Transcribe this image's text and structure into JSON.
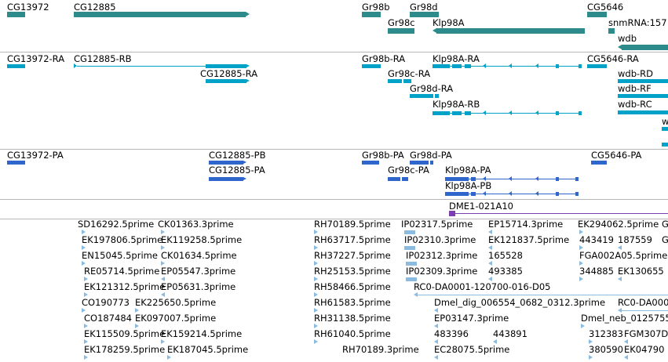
{
  "colors": {
    "gene": "#2e8b8b",
    "transcript": "#00a3c7",
    "protein": "#2e66cc",
    "clone": "#7a3fb0",
    "est": "#8cbbe0",
    "divider": "#b7b7b7"
  },
  "genes_track": {
    "labels": [
      "CG13972",
      "CG12885",
      "Gr98b",
      "Gr98d",
      "CG5646",
      "Gr98c",
      "Klp98A",
      "snmRNA:157",
      "wdb"
    ]
  },
  "transcripts_track": {
    "labels": [
      "CG13972-RA",
      "CG12885-RB",
      "Gr98b-RA",
      "Klp98A-RA",
      "CG5646-RA",
      "CG12885-RA",
      "Gr98c-RA",
      "wdb-RD",
      "Gr98d-RA",
      "wdb-RF",
      "Klp98A-RB",
      "wdb-RC",
      "w"
    ]
  },
  "proteins_track": {
    "labels": [
      "CG13972-PA",
      "CG12885-PB",
      "Gr98b-PA",
      "Gr98d-PA",
      "CG5646-PA",
      "CG12885-PA",
      "Gr98c-PA",
      "Klp98A-PA",
      "Klp98A-PB"
    ]
  },
  "clones_track": {
    "labels": [
      "DME1-021A10"
    ]
  },
  "est_track": {
    "labels": [
      "SD16292.5prime",
      "CK01363.3prime",
      "RH70189.5prime",
      "IP02317.5prime",
      "EP15714.3prime",
      "EK294062.5prime",
      "G",
      "EK197806.5prime",
      "EK119258.5prime",
      "RH63717.5prime",
      "IP02310.3prime",
      "EK121837.5prime",
      "443419",
      "187559",
      "G",
      "EN15045.5prime",
      "CK01634.5prime",
      "RH37227.5prime",
      "IP02312.3prime",
      "165528",
      "FGA002A05.5prime",
      "RE05714.5prime",
      "EP05547.3prime",
      "RH25153.5prime",
      "IP02309.3prime",
      "493385",
      "344885",
      "EK130655",
      "EK121312.5prime",
      "EP05631.3prime",
      "RH58466.5prime",
      "RC0-DA0001-120700-016-D05",
      "CO190773",
      "EK225650.5prime",
      "RH61583.5prime",
      "Dmel_dig_006554_0682_0312.3prime",
      "RC0-DA000",
      "CO187484",
      "EK097007.5prime",
      "RH31138.5prime",
      "EP03147.3prime",
      "Dmel_neb_0125755",
      "EK115509.5prime",
      "EK159214.5prime",
      "RH61040.5prime",
      "483396",
      "443891",
      "312383",
      "FGM307D",
      "EK178259.5prime",
      "EK187045.5prime",
      "RH70189.3prime",
      "EC28075.5prime",
      "380590",
      "EK04790"
    ]
  }
}
